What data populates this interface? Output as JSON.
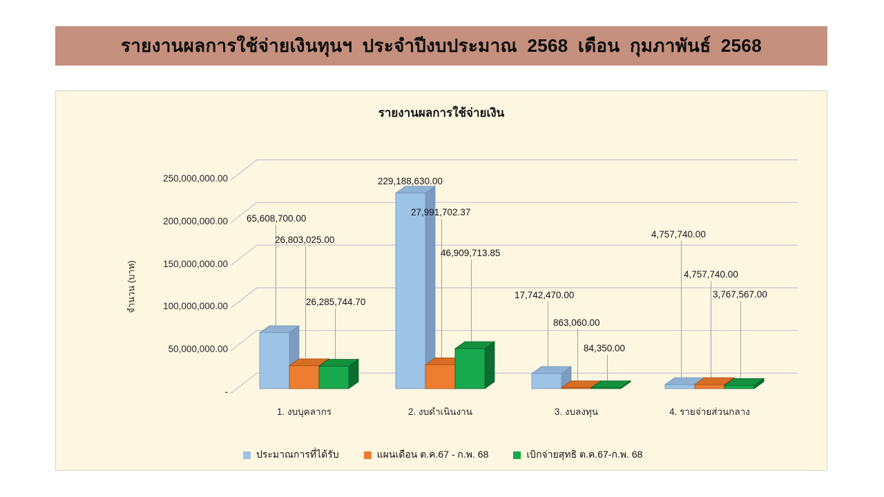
{
  "banner": {
    "title": "รายงานผลการใช้จ่ายเงินทุนฯ ประจำปีงบประมาณ 2568 เดือน กุมภาพันธ์ 2568",
    "background": "#C5907E"
  },
  "chart": {
    "title": "รายงานผลการใช้จ่ายเงิน",
    "y_axis_title": "จำนวน (บาท)",
    "background": "#FDF6E1",
    "gridline_color": "#C9C6CB",
    "leader_line_color": "#A0A0A0"
  },
  "chart_data": {
    "type": "bar",
    "title": "รายงานผลการใช้จ่ายเงิน",
    "ylabel": "จำนวน (บาท)",
    "xlabel": "",
    "ylim": [
      0,
      250000000
    ],
    "grid": true,
    "legend_position": "bottom",
    "y_ticks": [
      "250,000,000.00",
      "200,000,000.00",
      "150,000,000.00",
      "100,000,000.00",
      "50,000,000.00",
      "-"
    ],
    "categories": [
      "1. งบบุคลากร",
      "2. งบดำเนินงาน",
      "3. งบลงทุน",
      "4. รายจ่ายส่วนกลาง"
    ],
    "series": [
      {
        "name": "ประมาณการที่ได้รับ",
        "color": "#9DC3E6",
        "top_color": "#8FB2D4",
        "side_color": "#7D9BC0",
        "edge_color": "#7191B4",
        "values": [
          65608700.0,
          229188630.0,
          17742470.0,
          4757740.0
        ],
        "labels": [
          "65,608,700.00",
          "229,188,630.00",
          "17,742,470.00",
          "4,757,740.00"
        ]
      },
      {
        "name": "แผนเดือน ต.ค.67 - ก.พ. 68",
        "color": "#ED7D31",
        "top_color": "#D96C24",
        "side_color": "#B05718",
        "edge_color": "#9E4E15",
        "values": [
          26803025.0,
          27991702.37,
          863060.0,
          4757740.0
        ],
        "labels": [
          "26,803,025.00",
          "27,991,702.37",
          "863,060.00",
          "4,757,740.00"
        ]
      },
      {
        "name": "เบิกจ่ายสุทธิ ต.ค.67-ก.พ. 68",
        "color": "#18A94E",
        "top_color": "#13913F",
        "side_color": "#0B6E30",
        "edge_color": "#095C29",
        "values": [
          26285744.7,
          46909713.85,
          84350.0,
          3767567.0
        ],
        "labels": [
          "26,285,744.70",
          "46,909,713.85",
          "84,350.00",
          "3,767,567.00"
        ]
      }
    ]
  }
}
